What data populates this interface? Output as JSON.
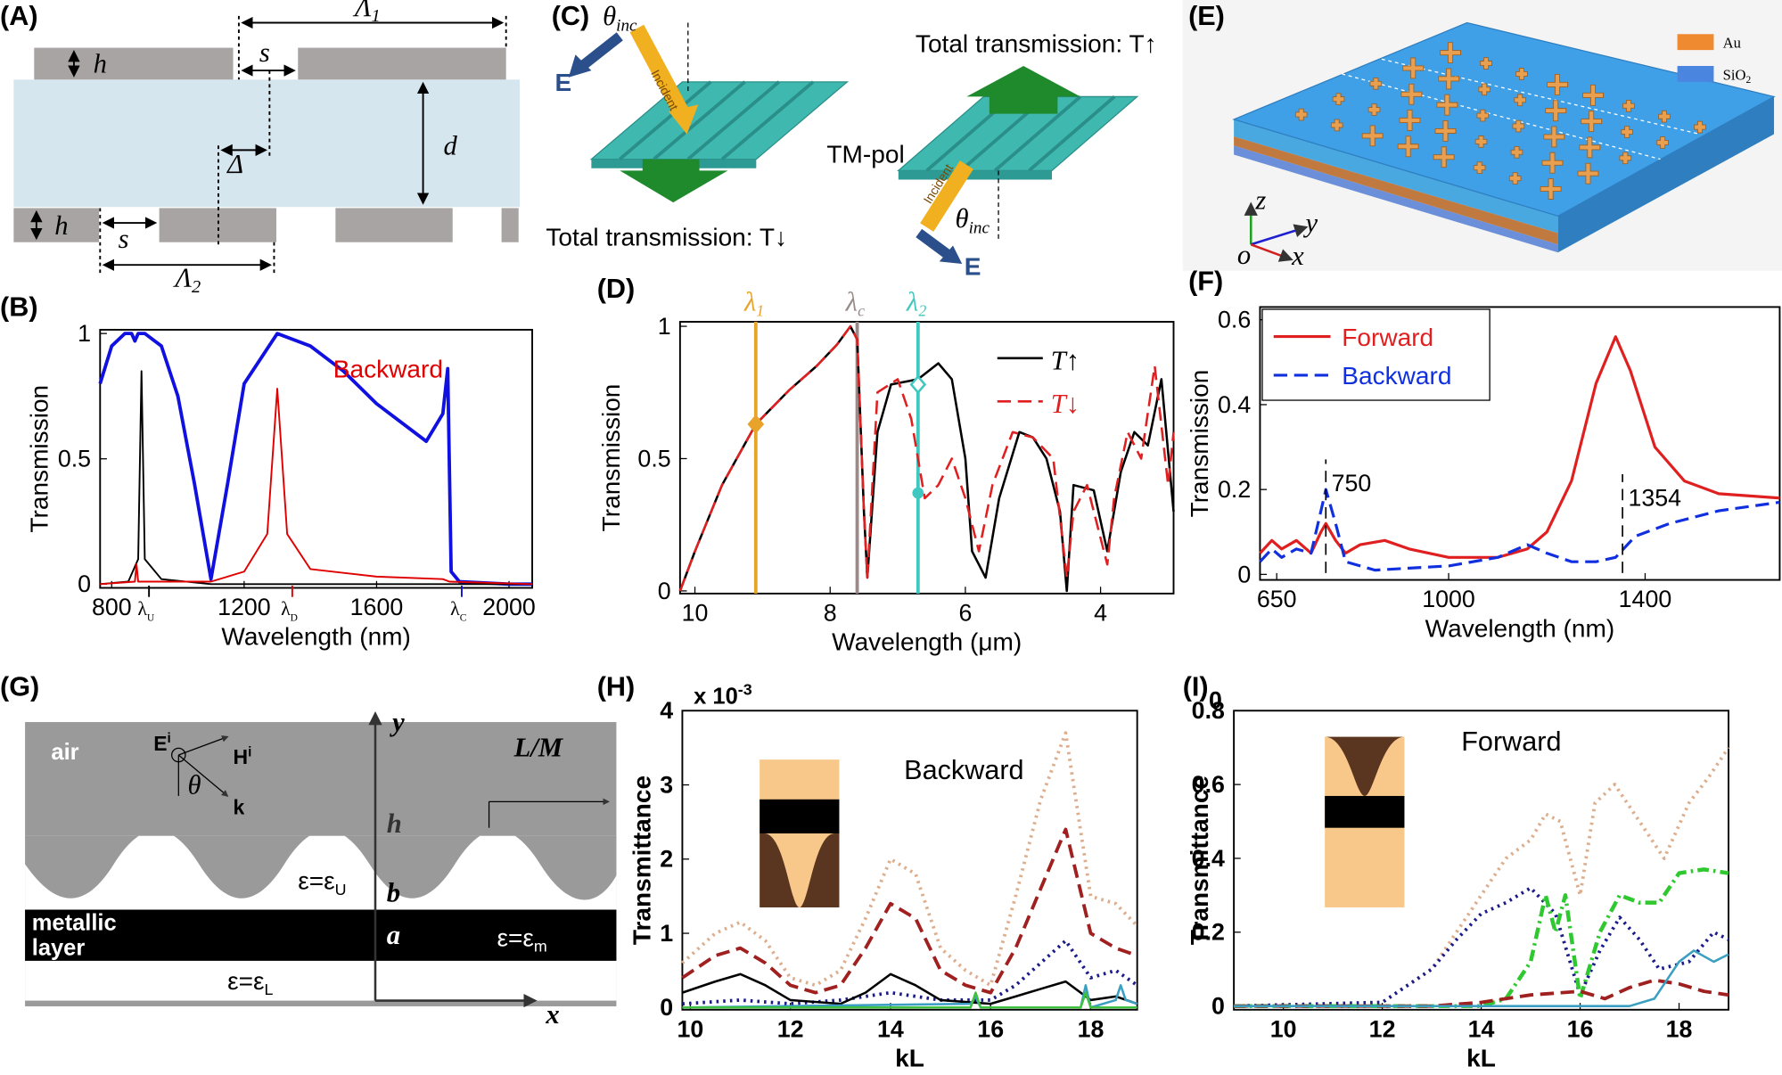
{
  "panel_labels": [
    "(A)",
    "(B)",
    "(C)",
    "(D)",
    "(E)",
    "(F)",
    "(G)",
    "(H)",
    "(I)"
  ],
  "diagram_a": {
    "h_top": "h",
    "s_top": "s",
    "lambda_1": {
      "symbol": "Λ",
      "sub": "1"
    },
    "d": "d",
    "delta": "Δ",
    "h_bottom": "h",
    "s_bottom": "s",
    "lambda_2": {
      "symbol": "Λ",
      "sub": "2"
    }
  },
  "diagram_c": {
    "theta_left": {
      "symbol": "θ",
      "sub": "inc"
    },
    "incident_left": "Incident",
    "e_left": "E",
    "caption_left": "Total transmission: T↓",
    "pol": "TM-pol",
    "caption_right": "Total transmission: T↑",
    "incident_right": "Incident",
    "theta_right": {
      "symbol": "θ",
      "sub": "inc"
    },
    "e_right": "E"
  },
  "diagram_e": {
    "legend": [
      {
        "label": "Au",
        "color": "#f08a30"
      },
      {
        "label": "SiO",
        "sub": "2",
        "color": "#4a86e0"
      }
    ],
    "axes": {
      "z": "z",
      "y": "y",
      "x": "x",
      "origin": "o"
    }
  },
  "diagram_g": {
    "air": "air",
    "e_field": {
      "symbol": "E",
      "sup": "i"
    },
    "h_field": {
      "symbol": "H",
      "sup": "i"
    },
    "theta": "θ",
    "k": "k",
    "y_axis": "y",
    "h": "h",
    "period": "L/M",
    "upper": {
      "text": "ε=ε",
      "sub": "U"
    },
    "b": "b",
    "metal": [
      "metallic",
      "layer"
    ],
    "a": "a",
    "metal_eps": {
      "text": "ε=ε",
      "sub": "m"
    },
    "lower": {
      "text": "ε=ε",
      "sub": "L"
    },
    "x_axis": "x"
  },
  "chart_data": [
    {
      "type": "line",
      "x_label": "Wavelength (nm)",
      "y_label": "Transmission",
      "xlim": [
        765,
        2070
      ],
      "ylim": [
        -0.015,
        1.015
      ],
      "xticks": [
        800,
        1200,
        1600,
        2000
      ],
      "yticks": [
        0,
        0.5,
        1
      ],
      "legend": "inline",
      "annotations": [
        {
          "symbol": "λ",
          "sub": "U"
        },
        {
          "symbol": "λ",
          "sub": "D"
        },
        {
          "symbol": "λ",
          "sub": "C"
        }
      ],
      "series": [
        {
          "color": "#1010e0",
          "dash": "solid",
          "width": 3,
          "x": [
            765,
            800,
            840,
            860,
            870,
            880,
            900,
            950,
            1000,
            1050,
            1100,
            1150,
            1200,
            1300,
            1400,
            1500,
            1600,
            1700,
            1750,
            1800,
            1815,
            1825,
            1850,
            2000,
            2070
          ],
          "values": [
            0.8,
            0.95,
            1,
            1,
            0.97,
            1,
            1,
            0.95,
            0.75,
            0.4,
            0.02,
            0.4,
            0.8,
            1,
            0.95,
            0.85,
            0.72,
            0.62,
            0.57,
            0.68,
            0.86,
            0.05,
            0.01,
            0,
            0
          ]
        },
        {
          "color": "#000000",
          "dash": "solid",
          "width": 1.5,
          "x": [
            765,
            850,
            880,
            890,
            900,
            950,
            1100,
            2070
          ],
          "values": [
            0,
            0.01,
            0.1,
            0.85,
            0.1,
            0.02,
            0,
            0
          ]
        },
        {
          "name": "Backward",
          "color": "#e00000",
          "dash": "solid",
          "width": 1.5,
          "x": [
            765,
            870,
            875,
            880,
            1100,
            1200,
            1270,
            1300,
            1330,
            1400,
            1600,
            1800,
            1820,
            2070
          ],
          "values": [
            0,
            0.01,
            0.08,
            0.01,
            0.01,
            0.05,
            0.2,
            0.78,
            0.2,
            0.06,
            0.03,
            0.02,
            0.01,
            0
          ]
        }
      ]
    },
    {
      "type": "line",
      "x_label": "Wavelength (μm)",
      "y_label": "Transmission",
      "xlim": [
        10.22,
        2.92
      ],
      "ylim": [
        -0.01,
        1.017
      ],
      "xticks": [
        10,
        8,
        6,
        4
      ],
      "yticks": [
        0,
        0.5,
        1
      ],
      "legend": "upper right",
      "reference_lines": [
        {
          "value": 9.1,
          "symbol": "λ",
          "sub": "1",
          "color": "#e8a32a"
        },
        {
          "value": 7.6,
          "symbol": "λ",
          "sub": "c",
          "color": "#9a8a8a"
        },
        {
          "value": 6.7,
          "symbol": "λ",
          "sub": "2",
          "color": "#40c8c0"
        }
      ],
      "markers": [
        {
          "x": 9.1,
          "y": 0.63,
          "color": "#e8a32a",
          "shape": "diamond"
        },
        {
          "x": 6.7,
          "y": 0.78,
          "color": "#40c8c0",
          "shape": "open-diamond"
        },
        {
          "x": 6.7,
          "y": 0.37,
          "color": "#40c8c0",
          "shape": "circle"
        }
      ],
      "series": [
        {
          "name": "T↑",
          "color": "#000000",
          "dash": "solid",
          "width": 2,
          "x": [
            10.22,
            10,
            9.6,
            9.1,
            8.6,
            8.2,
            7.9,
            7.7,
            7.6,
            7.5,
            7.45,
            7.3,
            7.1,
            6.7,
            6.4,
            6.2,
            6,
            5.9,
            5.7,
            5.5,
            5.2,
            5,
            4.8,
            4.6,
            4.5,
            4.4,
            4.1,
            3.9,
            3.7,
            3.5,
            3.3,
            3.1,
            2.92
          ],
          "values": [
            0,
            0.15,
            0.4,
            0.63,
            0.76,
            0.85,
            0.93,
            1,
            0.95,
            0.3,
            0.05,
            0.6,
            0.78,
            0.8,
            0.86,
            0.8,
            0.5,
            0.15,
            0.05,
            0.35,
            0.6,
            0.58,
            0.5,
            0.3,
            0,
            0.4,
            0.38,
            0.15,
            0.45,
            0.6,
            0.55,
            0.8,
            0.3
          ]
        },
        {
          "name": "T↓",
          "color": "#e02020",
          "dash": "dashed",
          "width": 2,
          "x": [
            10.22,
            10,
            9.6,
            9.1,
            8.6,
            8.2,
            7.9,
            7.7,
            7.6,
            7.5,
            7.45,
            7.3,
            7,
            6.8,
            6.6,
            6.4,
            6.2,
            6,
            5.8,
            5.6,
            5.3,
            5,
            4.7,
            4.5,
            4.4,
            4.2,
            3.9,
            3.8,
            3.6,
            3.4,
            3.2,
            3,
            2.92
          ],
          "values": [
            0,
            0.15,
            0.4,
            0.63,
            0.76,
            0.85,
            0.93,
            1,
            0.95,
            0.3,
            0.05,
            0.75,
            0.8,
            0.65,
            0.35,
            0.4,
            0.5,
            0.35,
            0.15,
            0.4,
            0.6,
            0.58,
            0.5,
            0.05,
            0.3,
            0.4,
            0.1,
            0.35,
            0.6,
            0.5,
            0.85,
            0.4,
            0.6
          ]
        }
      ]
    },
    {
      "type": "line",
      "x_label": "Wavelength (nm)",
      "y_label": "Transmission",
      "xlim": [
        616,
        1674
      ],
      "ylim": [
        -0.013,
        0.63
      ],
      "xticks": [
        650,
        1000,
        1400
      ],
      "yticks": [
        0,
        0.2,
        0.4,
        0.6
      ],
      "legend": "upper left",
      "annotations": [
        750,
        1354
      ],
      "series": [
        {
          "name": "Forward",
          "color": "#e02020",
          "dash": "solid",
          "width": 2.5,
          "x": [
            616,
            640,
            660,
            690,
            720,
            740,
            750,
            770,
            790,
            820,
            870,
            920,
            1000,
            1100,
            1160,
            1200,
            1250,
            1300,
            1340,
            1370,
            1420,
            1480,
            1550,
            1674
          ],
          "values": [
            0.05,
            0.08,
            0.06,
            0.08,
            0.05,
            0.1,
            0.12,
            0.08,
            0.05,
            0.07,
            0.08,
            0.06,
            0.04,
            0.04,
            0.06,
            0.1,
            0.22,
            0.45,
            0.56,
            0.48,
            0.3,
            0.22,
            0.19,
            0.18
          ]
        },
        {
          "name": "Backward",
          "color": "#1030e0",
          "dash": "dashed",
          "width": 2.5,
          "x": [
            616,
            640,
            660,
            690,
            720,
            740,
            750,
            770,
            790,
            850,
            1000,
            1100,
            1160,
            1200,
            1250,
            1300,
            1340,
            1380,
            1450,
            1550,
            1674
          ],
          "values": [
            0.03,
            0.06,
            0.04,
            0.06,
            0.05,
            0.15,
            0.2,
            0.12,
            0.03,
            0.01,
            0.02,
            0.04,
            0.07,
            0.05,
            0.03,
            0.03,
            0.04,
            0.09,
            0.12,
            0.15,
            0.17
          ]
        }
      ]
    },
    {
      "type": "line",
      "x_label": "kL",
      "y_label": "Transmittance",
      "xlim": [
        9.84,
        18.93
      ],
      "ylim": [
        -0.03,
        4
      ],
      "xticks": [
        10,
        12,
        14,
        16,
        18
      ],
      "yticks": [
        0,
        1,
        2,
        3,
        4
      ],
      "exponent_label": {
        "text": "x 10",
        "sup": "-3"
      },
      "annotation": "Backward",
      "series": [
        {
          "color": "#dcae8e",
          "dash": "dotted",
          "width": 3,
          "x": [
            9.84,
            10.5,
            11,
            11.5,
            12,
            12.5,
            13,
            13.5,
            14,
            14.5,
            15,
            15.5,
            16,
            16.5,
            17,
            17.5,
            18,
            18.5,
            18.93
          ],
          "values": [
            0.6,
            1,
            1.15,
            0.9,
            0.4,
            0.3,
            0.5,
            1.2,
            2,
            1.8,
            0.8,
            0.5,
            0.3,
            1.5,
            2.8,
            3.7,
            1.5,
            1.4,
            1.1
          ]
        },
        {
          "color": "#a02020",
          "dash": "dashed",
          "width": 3,
          "x": [
            9.84,
            10.5,
            11,
            11.5,
            12,
            12.5,
            13,
            13.5,
            14,
            14.5,
            15,
            15.5,
            16,
            16.5,
            17,
            17.5,
            18,
            18.5,
            18.93
          ],
          "values": [
            0.4,
            0.7,
            0.8,
            0.6,
            0.3,
            0.2,
            0.3,
            0.8,
            1.4,
            1.2,
            0.5,
            0.3,
            0.2,
            0.8,
            1.6,
            2.4,
            1,
            0.8,
            0.7
          ]
        },
        {
          "color": "#1a1a8a",
          "dash": "dotted",
          "width": 3,
          "x": [
            9.84,
            11,
            12,
            13,
            14,
            15,
            16,
            16.5,
            17,
            17.5,
            18,
            18.5,
            18.93
          ],
          "values": [
            0.05,
            0.1,
            0.05,
            0.1,
            0.2,
            0.1,
            0.1,
            0.3,
            0.6,
            0.9,
            0.4,
            0.5,
            0.3
          ]
        },
        {
          "color": "#000000",
          "dash": "solid",
          "width": 2,
          "x": [
            9.84,
            10.5,
            11,
            11.5,
            12,
            13,
            13.5,
            14,
            14.5,
            15,
            16,
            16.5,
            17,
            17.5,
            18,
            18.5,
            18.93
          ],
          "values": [
            0.2,
            0.35,
            0.45,
            0.3,
            0.1,
            0.05,
            0.2,
            0.45,
            0.3,
            0.1,
            0.05,
            0.15,
            0.25,
            0.35,
            0.1,
            0.15,
            0.05
          ]
        },
        {
          "color": "#3a9fc0",
          "dash": "solid",
          "width": 2,
          "x": [
            9.84,
            15.6,
            15.7,
            15.8,
            17.8,
            17.9,
            18,
            18.5,
            18.6,
            18.7,
            18.93
          ],
          "values": [
            0,
            0.05,
            0.15,
            0,
            0,
            0.3,
            0,
            0.1,
            0.3,
            0.1,
            0.05
          ]
        },
        {
          "color": "#40c040",
          "dash": "solid",
          "width": 2,
          "x": [
            9.84,
            15.6,
            15.7,
            15.8,
            17.8,
            17.9,
            18,
            18.93
          ],
          "values": [
            0,
            0,
            0.2,
            0,
            0,
            0.2,
            0,
            0
          ]
        }
      ]
    },
    {
      "type": "line",
      "x_label": "kL",
      "y_label": "Transmittance",
      "xlim": [
        9,
        19
      ],
      "ylim": [
        -0.01,
        0.8
      ],
      "xticks": [
        10,
        12,
        14,
        16,
        18
      ],
      "yticks": [
        0,
        0.2,
        0.4,
        0.6,
        0.8
      ],
      "corner_label": "0",
      "annotation": "Forward",
      "series": [
        {
          "color": "#dcae8e",
          "dash": "dotted",
          "width": 3,
          "x": [
            9,
            12,
            13,
            13.5,
            14,
            14.5,
            15,
            15.3,
            15.6,
            16,
            16.3,
            16.7,
            17.2,
            17.7,
            18.2,
            18.6,
            19
          ],
          "values": [
            0,
            0.01,
            0.1,
            0.2,
            0.3,
            0.4,
            0.45,
            0.52,
            0.5,
            0.3,
            0.55,
            0.6,
            0.5,
            0.4,
            0.55,
            0.62,
            0.7
          ]
        },
        {
          "color": "#1a1a8a",
          "dash": "dotted",
          "width": 3,
          "x": [
            9,
            12,
            13,
            13.5,
            14,
            14.5,
            15,
            15.5,
            16,
            16.4,
            16.8,
            17.2,
            17.6,
            18.2,
            18.7,
            19
          ],
          "values": [
            0,
            0.01,
            0.1,
            0.18,
            0.25,
            0.28,
            0.32,
            0.25,
            0.03,
            0.15,
            0.24,
            0.18,
            0.1,
            0.12,
            0.2,
            0.18
          ]
        },
        {
          "color": "#30c830",
          "dash": "dash-dot",
          "width": 3.5,
          "x": [
            9,
            14,
            14.5,
            15,
            15.3,
            15.5,
            15.7,
            16,
            16.4,
            16.8,
            17.2,
            17.6,
            18,
            18.5,
            19
          ],
          "values": [
            0,
            0,
            0.02,
            0.12,
            0.3,
            0.2,
            0.3,
            0.02,
            0.2,
            0.3,
            0.28,
            0.28,
            0.36,
            0.37,
            0.36
          ]
        },
        {
          "color": "#a02020",
          "dash": "dashed",
          "width": 3,
          "x": [
            9,
            13,
            14,
            15,
            16,
            16.5,
            17,
            17.5,
            18,
            18.5,
            19
          ],
          "values": [
            0,
            0,
            0.01,
            0.03,
            0.04,
            0.02,
            0.05,
            0.07,
            0.06,
            0.04,
            0.03
          ]
        },
        {
          "color": "#3a9fc0",
          "dash": "solid",
          "width": 2,
          "x": [
            9,
            17,
            17.5,
            18,
            18.3,
            18.7,
            19
          ],
          "values": [
            0,
            0,
            0.02,
            0.12,
            0.15,
            0.12,
            0.14
          ]
        }
      ]
    }
  ]
}
